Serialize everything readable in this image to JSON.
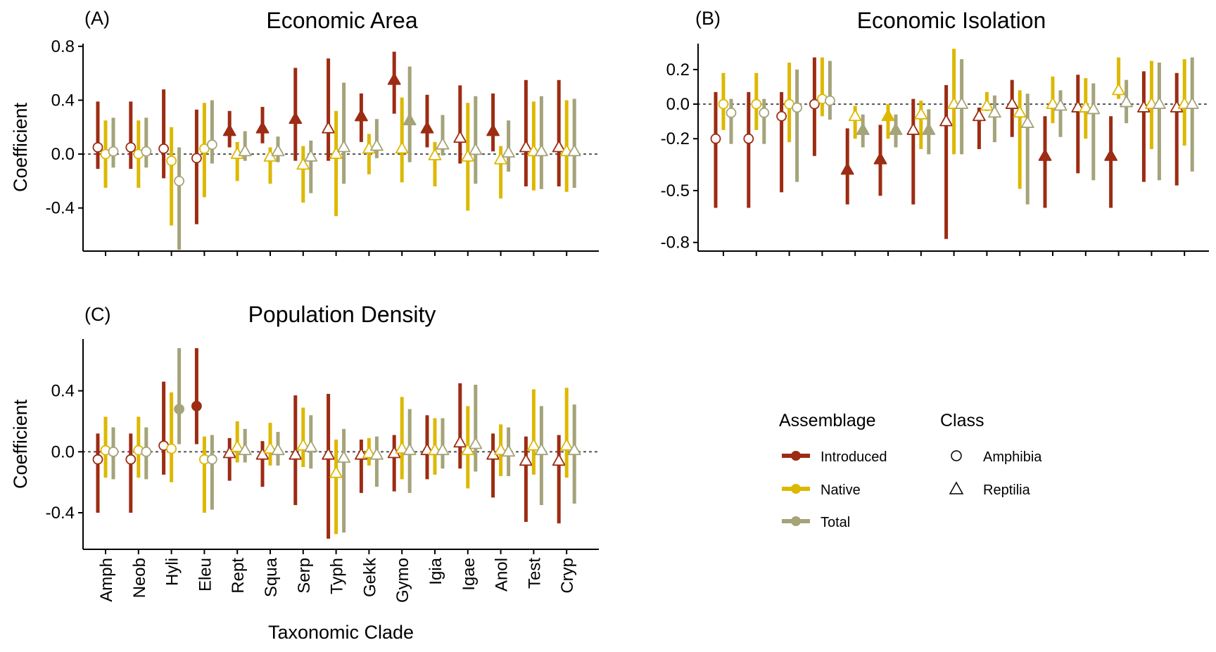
{
  "colors": {
    "Introduced": "#9C2C13",
    "Native": "#DDB800",
    "Total": "#A4A37A"
  },
  "legend": {
    "assemblage_title": "Assemblage",
    "class_title": "Class",
    "assemblage_items": [
      "Introduced",
      "Native",
      "Total"
    ],
    "class_items": [
      "Amphibia",
      "Reptilia"
    ]
  },
  "chart_data": [
    {
      "type": "scatter",
      "tag": "(A)",
      "title": "Economic Area",
      "ylabel": "Coefficient",
      "xlabel": "",
      "ylim": [
        -0.72,
        0.82
      ],
      "yticks": [
        0.8,
        0.4,
        0.0,
        -0.4
      ],
      "ytick_labels": [
        "0.8",
        "0.4",
        "0.0",
        "-0.4"
      ],
      "show_xtick_labels": false,
      "reference_line": 0,
      "categories": [
        "Amph",
        "Neob",
        "Hyli",
        "Eleu",
        "Rept",
        "Squa",
        "Serp",
        "Typh",
        "Gekk",
        "Gymo",
        "Igia",
        "Igae",
        "Anol",
        "Test",
        "Cryp"
      ],
      "class": [
        "Amphibia",
        "Amphibia",
        "Amphibia",
        "Amphibia",
        "Reptilia",
        "Reptilia",
        "Reptilia",
        "Reptilia",
        "Reptilia",
        "Reptilia",
        "Reptilia",
        "Reptilia",
        "Reptilia",
        "Reptilia",
        "Reptilia"
      ],
      "series": [
        {
          "name": "Introduced",
          "values": [
            0.05,
            0.05,
            0.04,
            -0.03,
            0.17,
            0.19,
            0.26,
            0.19,
            0.28,
            0.55,
            0.19,
            0.12,
            0.17,
            0.05,
            0.05
          ],
          "lower": [
            -0.11,
            -0.11,
            -0.18,
            -0.52,
            0.05,
            0.08,
            -0.05,
            -0.05,
            0.09,
            0.3,
            0.05,
            -0.07,
            0.02,
            -0.24,
            -0.24
          ],
          "upper": [
            0.39,
            0.39,
            0.48,
            0.33,
            0.32,
            0.35,
            0.64,
            0.71,
            0.45,
            0.76,
            0.44,
            0.51,
            0.45,
            0.55,
            0.55
          ],
          "significant": [
            false,
            false,
            false,
            false,
            true,
            true,
            true,
            false,
            true,
            true,
            true,
            false,
            true,
            false,
            false
          ]
        },
        {
          "name": "Native",
          "values": [
            0.0,
            0.0,
            -0.05,
            0.04,
            0.0,
            -0.02,
            -0.08,
            0.0,
            0.04,
            0.04,
            -0.01,
            -0.02,
            -0.04,
            0.02,
            0.02
          ],
          "lower": [
            -0.25,
            -0.25,
            -0.53,
            -0.32,
            -0.2,
            -0.22,
            -0.36,
            -0.46,
            -0.15,
            -0.21,
            -0.24,
            -0.42,
            -0.33,
            -0.27,
            -0.28
          ],
          "upper": [
            0.25,
            0.25,
            0.2,
            0.38,
            0.09,
            0.05,
            0.06,
            0.32,
            0.15,
            0.42,
            0.09,
            0.38,
            0.06,
            0.39,
            0.4
          ],
          "significant": [
            false,
            false,
            false,
            false,
            false,
            false,
            false,
            false,
            false,
            false,
            false,
            false,
            false,
            false,
            false
          ]
        },
        {
          "name": "Total",
          "values": [
            0.02,
            0.02,
            -0.2,
            0.07,
            0.02,
            0.02,
            -0.02,
            0.05,
            0.06,
            0.25,
            0.07,
            0.03,
            0.01,
            0.02,
            0.02
          ],
          "lower": [
            -0.1,
            -0.1,
            -0.71,
            -0.07,
            -0.05,
            -0.06,
            -0.29,
            -0.22,
            -0.03,
            -0.06,
            -0.01,
            -0.22,
            -0.13,
            -0.26,
            -0.25
          ],
          "upper": [
            0.27,
            0.27,
            0.05,
            0.4,
            0.17,
            0.13,
            0.1,
            0.53,
            0.26,
            0.65,
            0.29,
            0.43,
            0.25,
            0.43,
            0.41
          ],
          "significant": [
            false,
            false,
            false,
            false,
            false,
            false,
            false,
            false,
            false,
            true,
            false,
            false,
            false,
            false,
            false
          ]
        }
      ]
    },
    {
      "type": "scatter",
      "tag": "(B)",
      "title": "Economic Isolation",
      "ylabel": "",
      "xlabel": "",
      "ylim": [
        -0.85,
        0.35
      ],
      "yticks": [
        0.2,
        0.0,
        -0.2,
        -0.5,
        -0.8
      ],
      "ytick_labels": [
        "0.2",
        "0.0",
        "-0.2",
        "-0.5",
        "-0.8"
      ],
      "show_xtick_labels": false,
      "reference_line": 0,
      "categories": [
        "Amph",
        "Neob",
        "Hyli",
        "Eleu",
        "Rept",
        "Squa",
        "Serp",
        "Typh",
        "Gekk",
        "Gymo",
        "Igia",
        "Igae",
        "Anol",
        "Test",
        "Cryp"
      ],
      "class": [
        "Amphibia",
        "Amphibia",
        "Amphibia",
        "Amphibia",
        "Reptilia",
        "Reptilia",
        "Reptilia",
        "Reptilia",
        "Reptilia",
        "Reptilia",
        "Reptilia",
        "Reptilia",
        "Reptilia",
        "Reptilia",
        "Reptilia"
      ],
      "series": [
        {
          "name": "Introduced",
          "values": [
            -0.2,
            -0.2,
            -0.07,
            0.0,
            -0.38,
            -0.32,
            -0.15,
            -0.1,
            -0.07,
            0.0,
            -0.3,
            -0.02,
            -0.3,
            -0.02,
            -0.02
          ],
          "lower": [
            -0.6,
            -0.6,
            -0.51,
            -0.3,
            -0.58,
            -0.53,
            -0.58,
            -0.78,
            -0.26,
            -0.19,
            -0.6,
            -0.4,
            -0.6,
            -0.45,
            -0.47
          ],
          "upper": [
            0.07,
            0.07,
            0.07,
            0.27,
            -0.14,
            -0.12,
            0.03,
            0.11,
            -0.02,
            0.14,
            -0.07,
            0.17,
            -0.07,
            0.19,
            0.18
          ],
          "significant": [
            false,
            false,
            false,
            false,
            true,
            true,
            false,
            false,
            false,
            false,
            true,
            false,
            true,
            false,
            false
          ]
        },
        {
          "name": "Native",
          "values": [
            0.0,
            0.0,
            0.0,
            0.03,
            -0.07,
            -0.07,
            -0.06,
            0.0,
            -0.01,
            -0.05,
            0.0,
            -0.02,
            0.08,
            0.0,
            0.0
          ],
          "lower": [
            -0.15,
            -0.15,
            -0.22,
            -0.07,
            -0.2,
            -0.2,
            -0.26,
            -0.29,
            -0.04,
            -0.49,
            -0.11,
            -0.2,
            0.03,
            -0.26,
            -0.24
          ],
          "upper": [
            0.18,
            0.18,
            0.24,
            0.27,
            -0.01,
            0.0,
            0.02,
            0.32,
            0.07,
            0.08,
            0.16,
            0.15,
            0.27,
            0.25,
            0.26
          ],
          "significant": [
            false,
            false,
            false,
            false,
            false,
            true,
            false,
            false,
            false,
            false,
            false,
            false,
            false,
            false,
            false
          ]
        },
        {
          "name": "Total",
          "values": [
            -0.05,
            -0.05,
            -0.02,
            0.02,
            -0.15,
            -0.15,
            -0.15,
            0.0,
            -0.05,
            -0.11,
            -0.01,
            -0.03,
            0.01,
            0.0,
            0.0
          ],
          "lower": [
            -0.23,
            -0.23,
            -0.45,
            -0.09,
            -0.25,
            -0.25,
            -0.29,
            -0.29,
            -0.22,
            -0.58,
            -0.19,
            -0.44,
            -0.11,
            -0.44,
            -0.39
          ],
          "upper": [
            0.03,
            0.03,
            0.2,
            0.25,
            -0.06,
            -0.06,
            -0.03,
            0.26,
            0.05,
            0.06,
            0.08,
            0.12,
            0.14,
            0.24,
            0.27
          ],
          "significant": [
            false,
            false,
            false,
            false,
            true,
            true,
            true,
            false,
            false,
            false,
            false,
            false,
            false,
            false,
            false
          ]
        }
      ]
    },
    {
      "type": "scatter",
      "tag": "(C)",
      "title": "Population Density",
      "ylabel": "Coefficient",
      "xlabel": "Taxonomic Clade",
      "ylim": [
        -0.64,
        0.74
      ],
      "yticks": [
        0.4,
        0.0,
        -0.4
      ],
      "ytick_labels": [
        "0.4",
        "0.0",
        "-0.4"
      ],
      "show_xtick_labels": true,
      "reference_line": 0,
      "categories": [
        "Amph",
        "Neob",
        "Hyli",
        "Eleu",
        "Rept",
        "Squa",
        "Serp",
        "Typh",
        "Gekk",
        "Gymo",
        "Igia",
        "Igae",
        "Anol",
        "Test",
        "Cryp"
      ],
      "class": [
        "Amphibia",
        "Amphibia",
        "Amphibia",
        "Amphibia",
        "Reptilia",
        "Reptilia",
        "Reptilia",
        "Reptilia",
        "Reptilia",
        "Reptilia",
        "Reptilia",
        "Reptilia",
        "Reptilia",
        "Reptilia",
        "Reptilia"
      ],
      "series": [
        {
          "name": "Introduced",
          "values": [
            -0.05,
            -0.05,
            0.04,
            0.3,
            -0.01,
            -0.02,
            -0.02,
            -0.02,
            -0.02,
            -0.01,
            0.01,
            0.06,
            -0.02,
            -0.06,
            -0.06
          ],
          "lower": [
            -0.4,
            -0.4,
            -0.15,
            0.05,
            -0.19,
            -0.23,
            -0.35,
            -0.57,
            -0.27,
            -0.26,
            -0.18,
            -0.11,
            -0.3,
            -0.46,
            -0.47
          ],
          "upper": [
            0.12,
            0.12,
            0.46,
            0.68,
            0.09,
            0.07,
            0.37,
            0.38,
            0.08,
            0.11,
            0.24,
            0.45,
            0.12,
            0.1,
            0.11
          ],
          "significant": [
            false,
            false,
            false,
            true,
            false,
            false,
            false,
            false,
            false,
            false,
            false,
            false,
            false,
            false,
            false
          ]
        },
        {
          "name": "Native",
          "values": [
            0.01,
            0.01,
            0.02,
            -0.05,
            0.03,
            0.02,
            0.04,
            -0.14,
            -0.01,
            0.02,
            0.01,
            0.01,
            0.01,
            0.04,
            0.04
          ],
          "lower": [
            -0.17,
            -0.17,
            -0.2,
            -0.4,
            -0.07,
            -0.09,
            -0.1,
            -0.54,
            -0.09,
            -0.18,
            -0.15,
            -0.24,
            -0.16,
            -0.15,
            -0.17
          ],
          "upper": [
            0.23,
            0.23,
            0.39,
            0.1,
            0.2,
            0.19,
            0.29,
            0.08,
            0.09,
            0.36,
            0.22,
            0.3,
            0.18,
            0.41,
            0.42
          ],
          "significant": [
            false,
            false,
            false,
            false,
            false,
            false,
            false,
            false,
            false,
            false,
            false,
            false,
            false,
            false,
            false
          ]
        },
        {
          "name": "Total",
          "values": [
            0.0,
            0.0,
            0.28,
            -0.05,
            0.01,
            0.01,
            0.03,
            -0.04,
            -0.02,
            0.01,
            0.01,
            0.05,
            0.0,
            0.01,
            0.01
          ],
          "lower": [
            -0.18,
            -0.18,
            0.05,
            -0.38,
            -0.07,
            -0.09,
            -0.11,
            -0.53,
            -0.23,
            -0.27,
            -0.11,
            -0.13,
            -0.16,
            -0.35,
            -0.34
          ],
          "upper": [
            0.16,
            0.16,
            0.68,
            0.11,
            0.15,
            0.13,
            0.24,
            0.15,
            0.1,
            0.28,
            0.22,
            0.44,
            0.16,
            0.3,
            0.31
          ],
          "significant": [
            false,
            false,
            true,
            false,
            false,
            false,
            false,
            false,
            false,
            false,
            false,
            false,
            false,
            false,
            false
          ]
        }
      ]
    }
  ]
}
